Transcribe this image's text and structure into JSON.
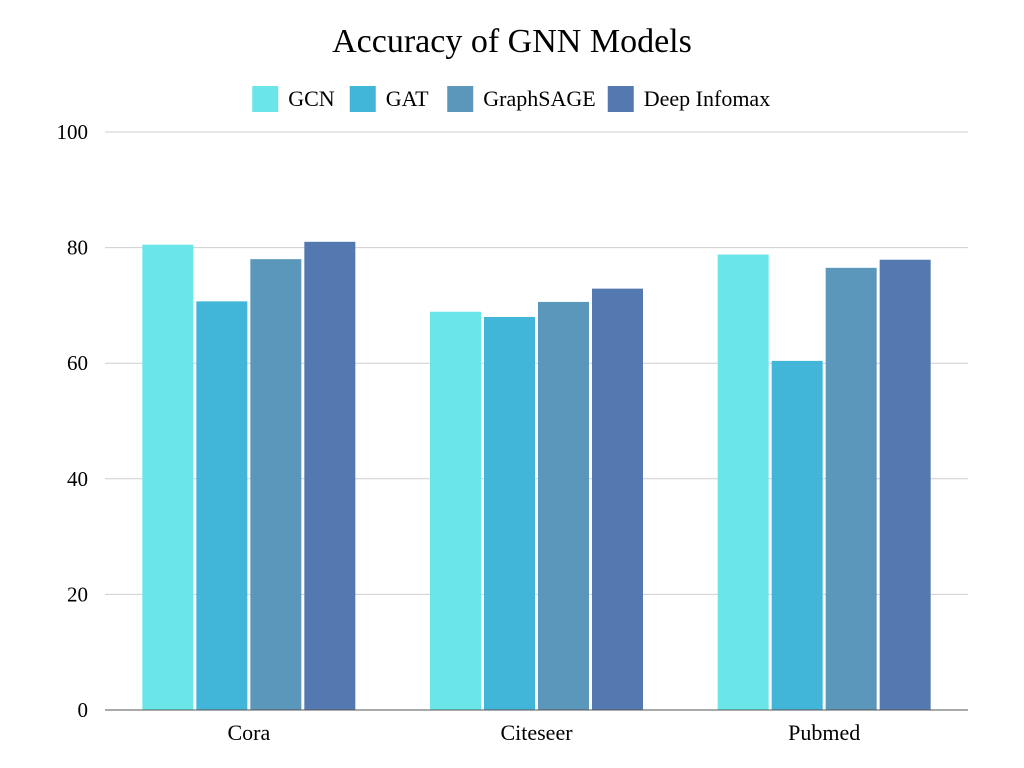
{
  "chart_data": {
    "type": "bar",
    "title": "Accuracy of GNN Models",
    "xlabel": "",
    "ylabel": "",
    "categories": [
      "Cora",
      "Citeseer",
      "Pubmed"
    ],
    "series": [
      {
        "name": "GCN",
        "values": [
          80.5,
          68.9,
          78.8
        ],
        "color": "#6ae5e8"
      },
      {
        "name": "GAT",
        "values": [
          70.7,
          68.0,
          60.4
        ],
        "color": "#42b6d8"
      },
      {
        "name": "GraphSAGE",
        "values": [
          78.0,
          70.6,
          76.5
        ],
        "color": "#5a97bb"
      },
      {
        "name": "Deep Infomax",
        "values": [
          81.0,
          72.9,
          77.9
        ],
        "color": "#5478b0"
      }
    ],
    "ylim": [
      0,
      100
    ],
    "yticks": [
      "0",
      "20",
      "40",
      "60",
      "80",
      "100"
    ],
    "grid": true,
    "legend_position": "top"
  }
}
